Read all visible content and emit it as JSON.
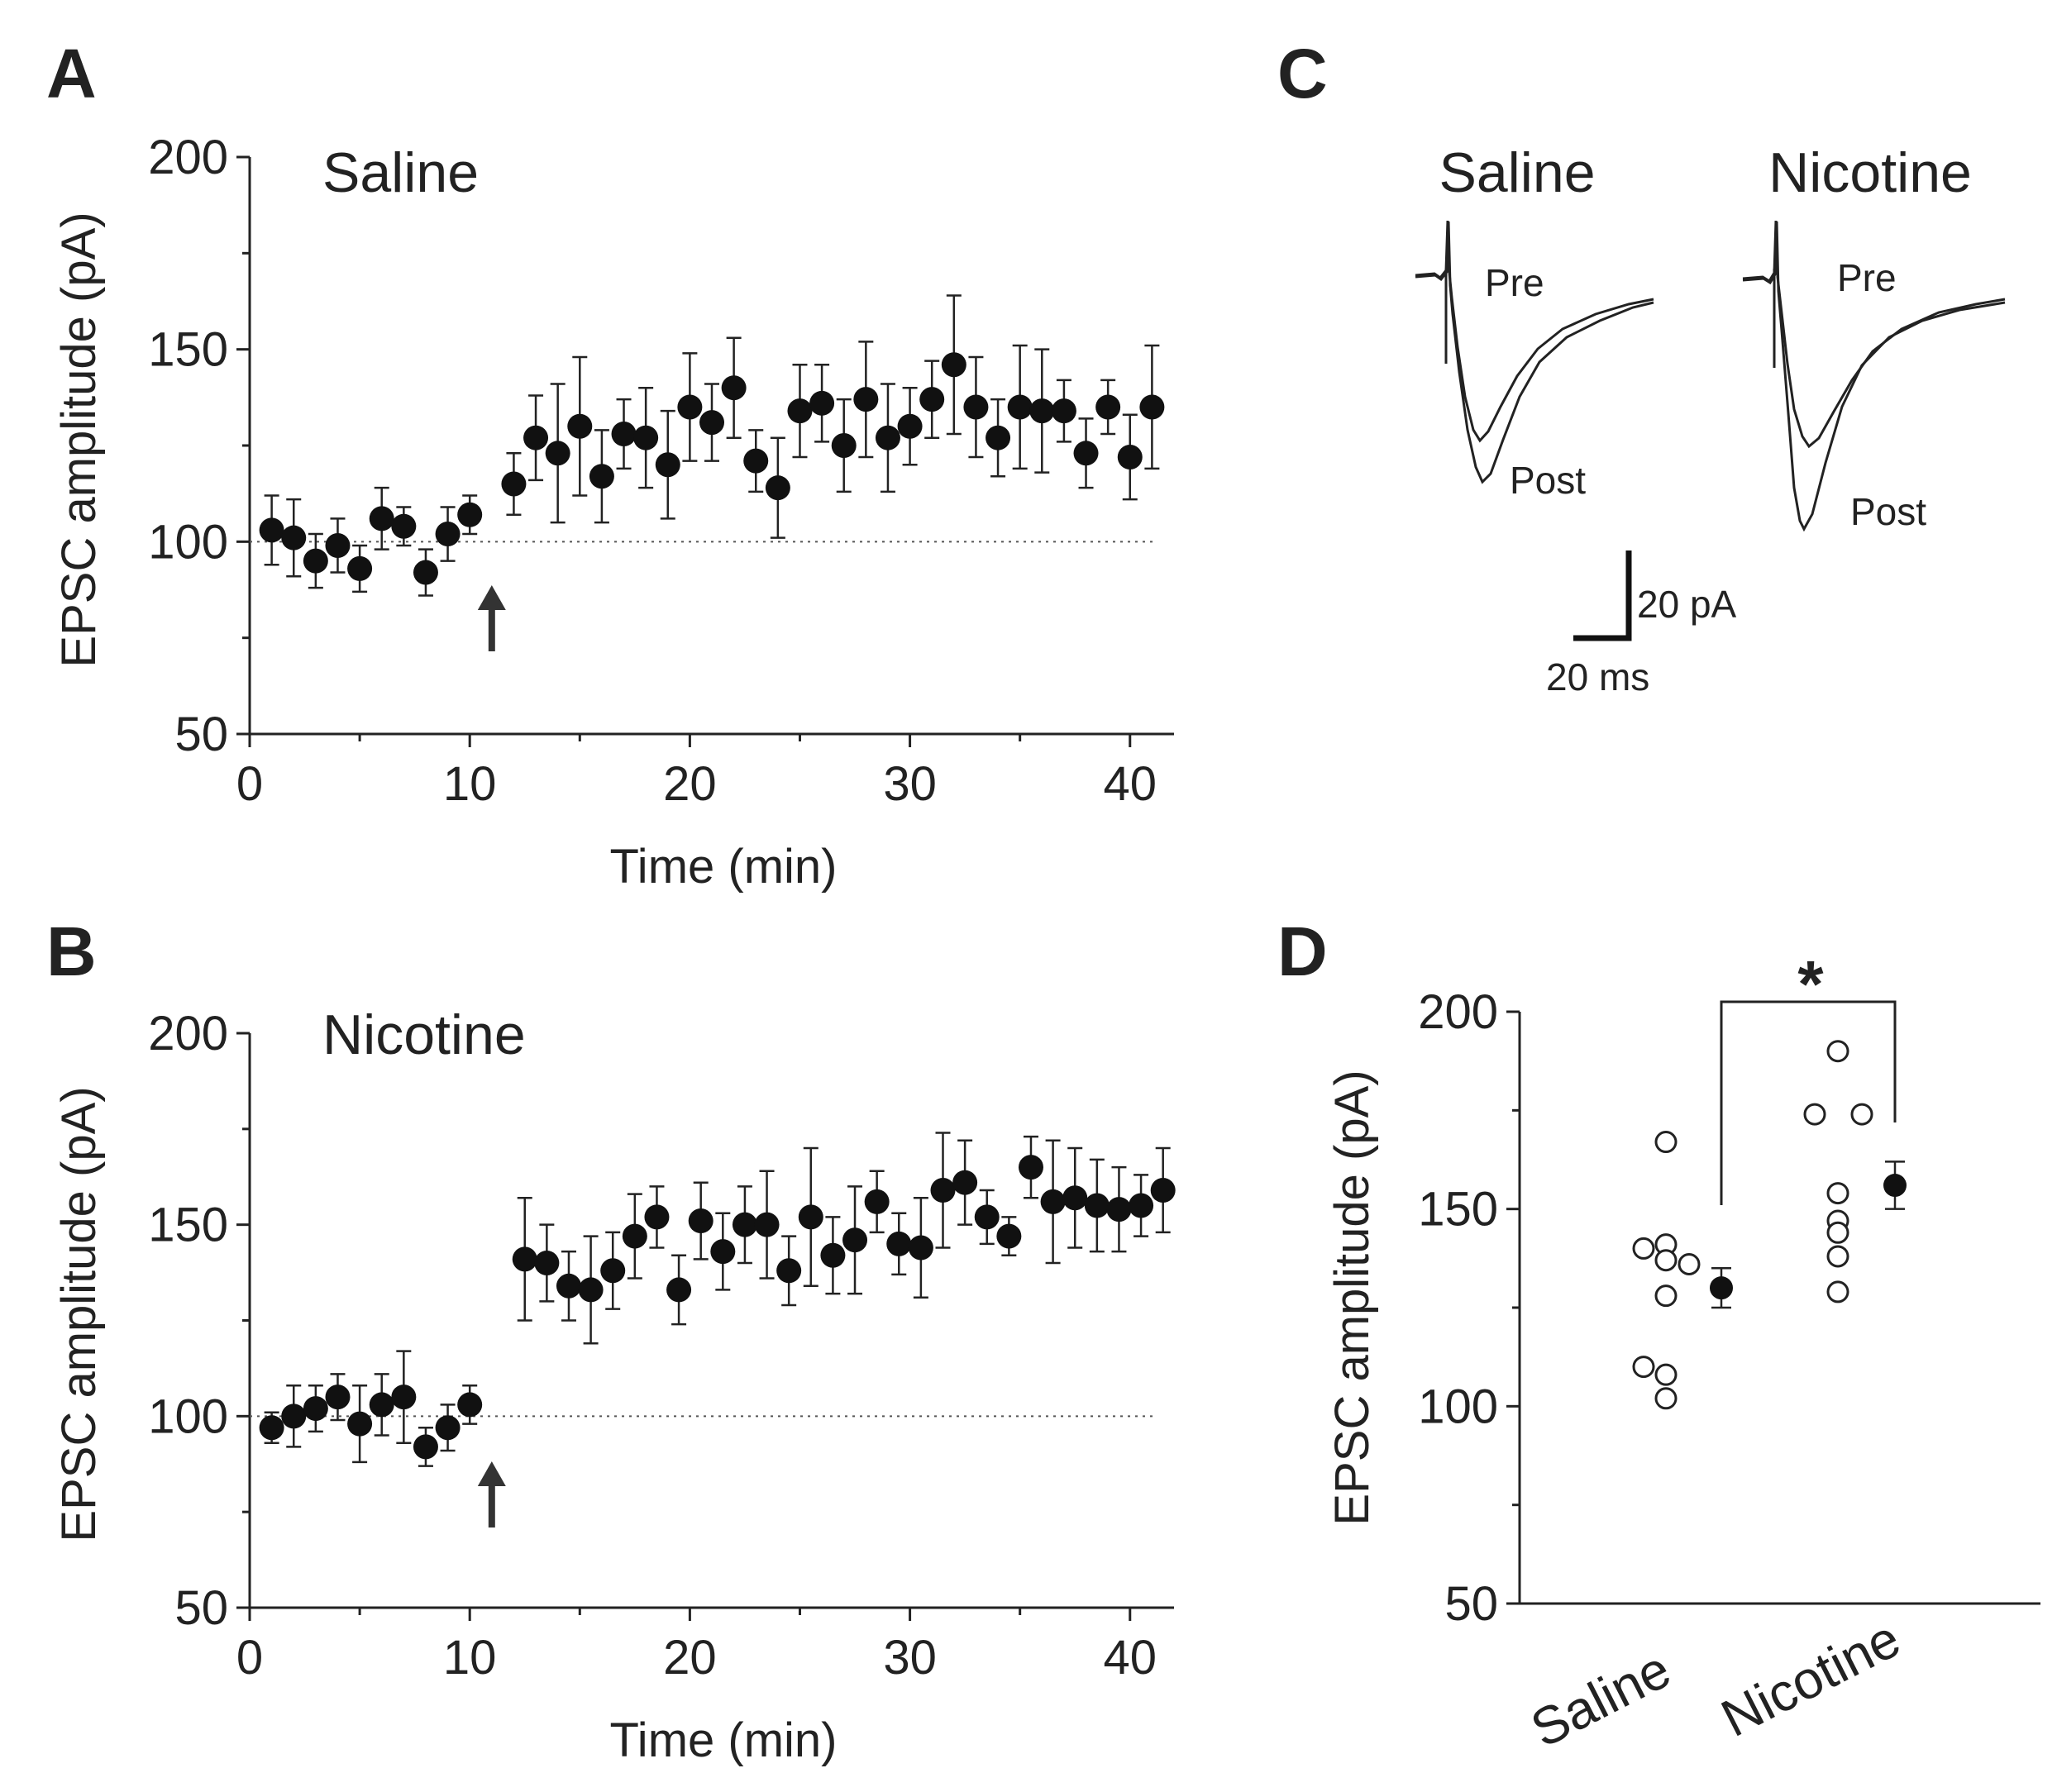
{
  "panels": {
    "A": "A",
    "B": "B",
    "C": "C",
    "D": "D"
  },
  "colors": {
    "marker": "#111111",
    "axis": "#222222",
    "open_marker_fill": "#ffffff"
  },
  "chart_data": [
    {
      "id": "A",
      "type": "scatter",
      "title": "Saline",
      "xlabel": "Time (min)",
      "ylabel": "EPSC amplitude (pA)",
      "xlim": [
        0,
        42
      ],
      "ylim": [
        50,
        200
      ],
      "xticks": [
        0,
        10,
        20,
        30,
        40
      ],
      "yticks": [
        50,
        100,
        150,
        200
      ],
      "baseline": 100,
      "arrow_at_min": 11,
      "series": [
        {
          "name": "Saline",
          "x": [
            1,
            2,
            3,
            4,
            5,
            6,
            7,
            8,
            9,
            10,
            12,
            13,
            14,
            15,
            16,
            17,
            18,
            19,
            20,
            21,
            22,
            23,
            24,
            25,
            26,
            27,
            28,
            29,
            30,
            31,
            32,
            33,
            34,
            35,
            36,
            37,
            38,
            39,
            40,
            41
          ],
          "y": [
            103,
            101,
            95,
            99,
            93,
            106,
            104,
            92,
            102,
            107,
            115,
            127,
            123,
            130,
            117,
            128,
            127,
            120,
            135,
            131,
            140,
            121,
            114,
            134,
            136,
            125,
            137,
            127,
            130,
            137,
            146,
            135,
            127,
            135,
            134,
            134,
            123,
            135,
            122,
            135
          ],
          "err": [
            9,
            10,
            7,
            7,
            6,
            8,
            5,
            6,
            7,
            5,
            8,
            11,
            18,
            18,
            12,
            9,
            13,
            14,
            14,
            10,
            13,
            8,
            13,
            12,
            10,
            12,
            15,
            14,
            10,
            10,
            18,
            13,
            10,
            16,
            16,
            8,
            9,
            7,
            11,
            16
          ]
        }
      ]
    },
    {
      "id": "B",
      "type": "scatter",
      "title": "Nicotine",
      "xlabel": "Time (min)",
      "ylabel": "EPSC amplitude (pA)",
      "xlim": [
        0,
        42
      ],
      "ylim": [
        50,
        200
      ],
      "xticks": [
        0,
        10,
        20,
        30,
        40
      ],
      "yticks": [
        50,
        100,
        150,
        200
      ],
      "baseline": 100,
      "arrow_at_min": 11,
      "series": [
        {
          "name": "Nicotine",
          "x": [
            1,
            2,
            3,
            4,
            5,
            6,
            7,
            8,
            9,
            10,
            12.5,
            13.5,
            14.5,
            15.5,
            16.5,
            17.5,
            18.5,
            19.5,
            20.5,
            21.5,
            22.5,
            23.5,
            24.5,
            25.5,
            26.5,
            27.5,
            28.5,
            29.5,
            30.5,
            31.5,
            32.5,
            33.5,
            34.5,
            35.5,
            36.5,
            37.5,
            38.5,
            39.5,
            40.5,
            41.5
          ],
          "y": [
            97,
            100,
            102,
            105,
            98,
            103,
            105,
            92,
            97,
            103,
            141,
            140,
            134,
            133,
            138,
            147,
            152,
            133,
            151,
            143,
            150,
            150,
            138,
            152,
            142,
            146,
            156,
            145,
            144,
            159,
            161,
            152,
            147,
            165,
            156,
            157,
            155,
            154,
            155,
            159
          ],
          "err": [
            4,
            8,
            6,
            6,
            10,
            8,
            12,
            5,
            6,
            5,
            16,
            10,
            9,
            14,
            10,
            11,
            8,
            9,
            10,
            10,
            10,
            14,
            9,
            18,
            10,
            14,
            8,
            8,
            13,
            15,
            11,
            7,
            5,
            8,
            16,
            13,
            12,
            11,
            8,
            11
          ]
        }
      ]
    },
    {
      "id": "D",
      "type": "scatter",
      "ylabel": "EPSC amplitude (pA)",
      "ylim": [
        50,
        200
      ],
      "yticks": [
        50,
        100,
        150,
        200
      ],
      "categories": [
        "Saline",
        "Nicotine"
      ],
      "significance": "*",
      "series": [
        {
          "name": "Saline individual",
          "values": [
            167,
            140,
            141,
            137,
            136,
            128,
            110,
            108,
            102
          ]
        },
        {
          "name": "Saline mean",
          "values": [
            130
          ],
          "err": [
            5
          ]
        },
        {
          "name": "Nicotine individual",
          "values": [
            190,
            174,
            174,
            154,
            147,
            144,
            138,
            129
          ]
        },
        {
          "name": "Nicotine mean",
          "values": [
            156
          ],
          "err": [
            6
          ]
        }
      ]
    }
  ],
  "traces": {
    "saline_title": "Saline",
    "nicotine_title": "Nicotine",
    "pre_label": "Pre",
    "post_label": "Post",
    "scale_amp": "20 pA",
    "scale_time": "20 ms"
  }
}
